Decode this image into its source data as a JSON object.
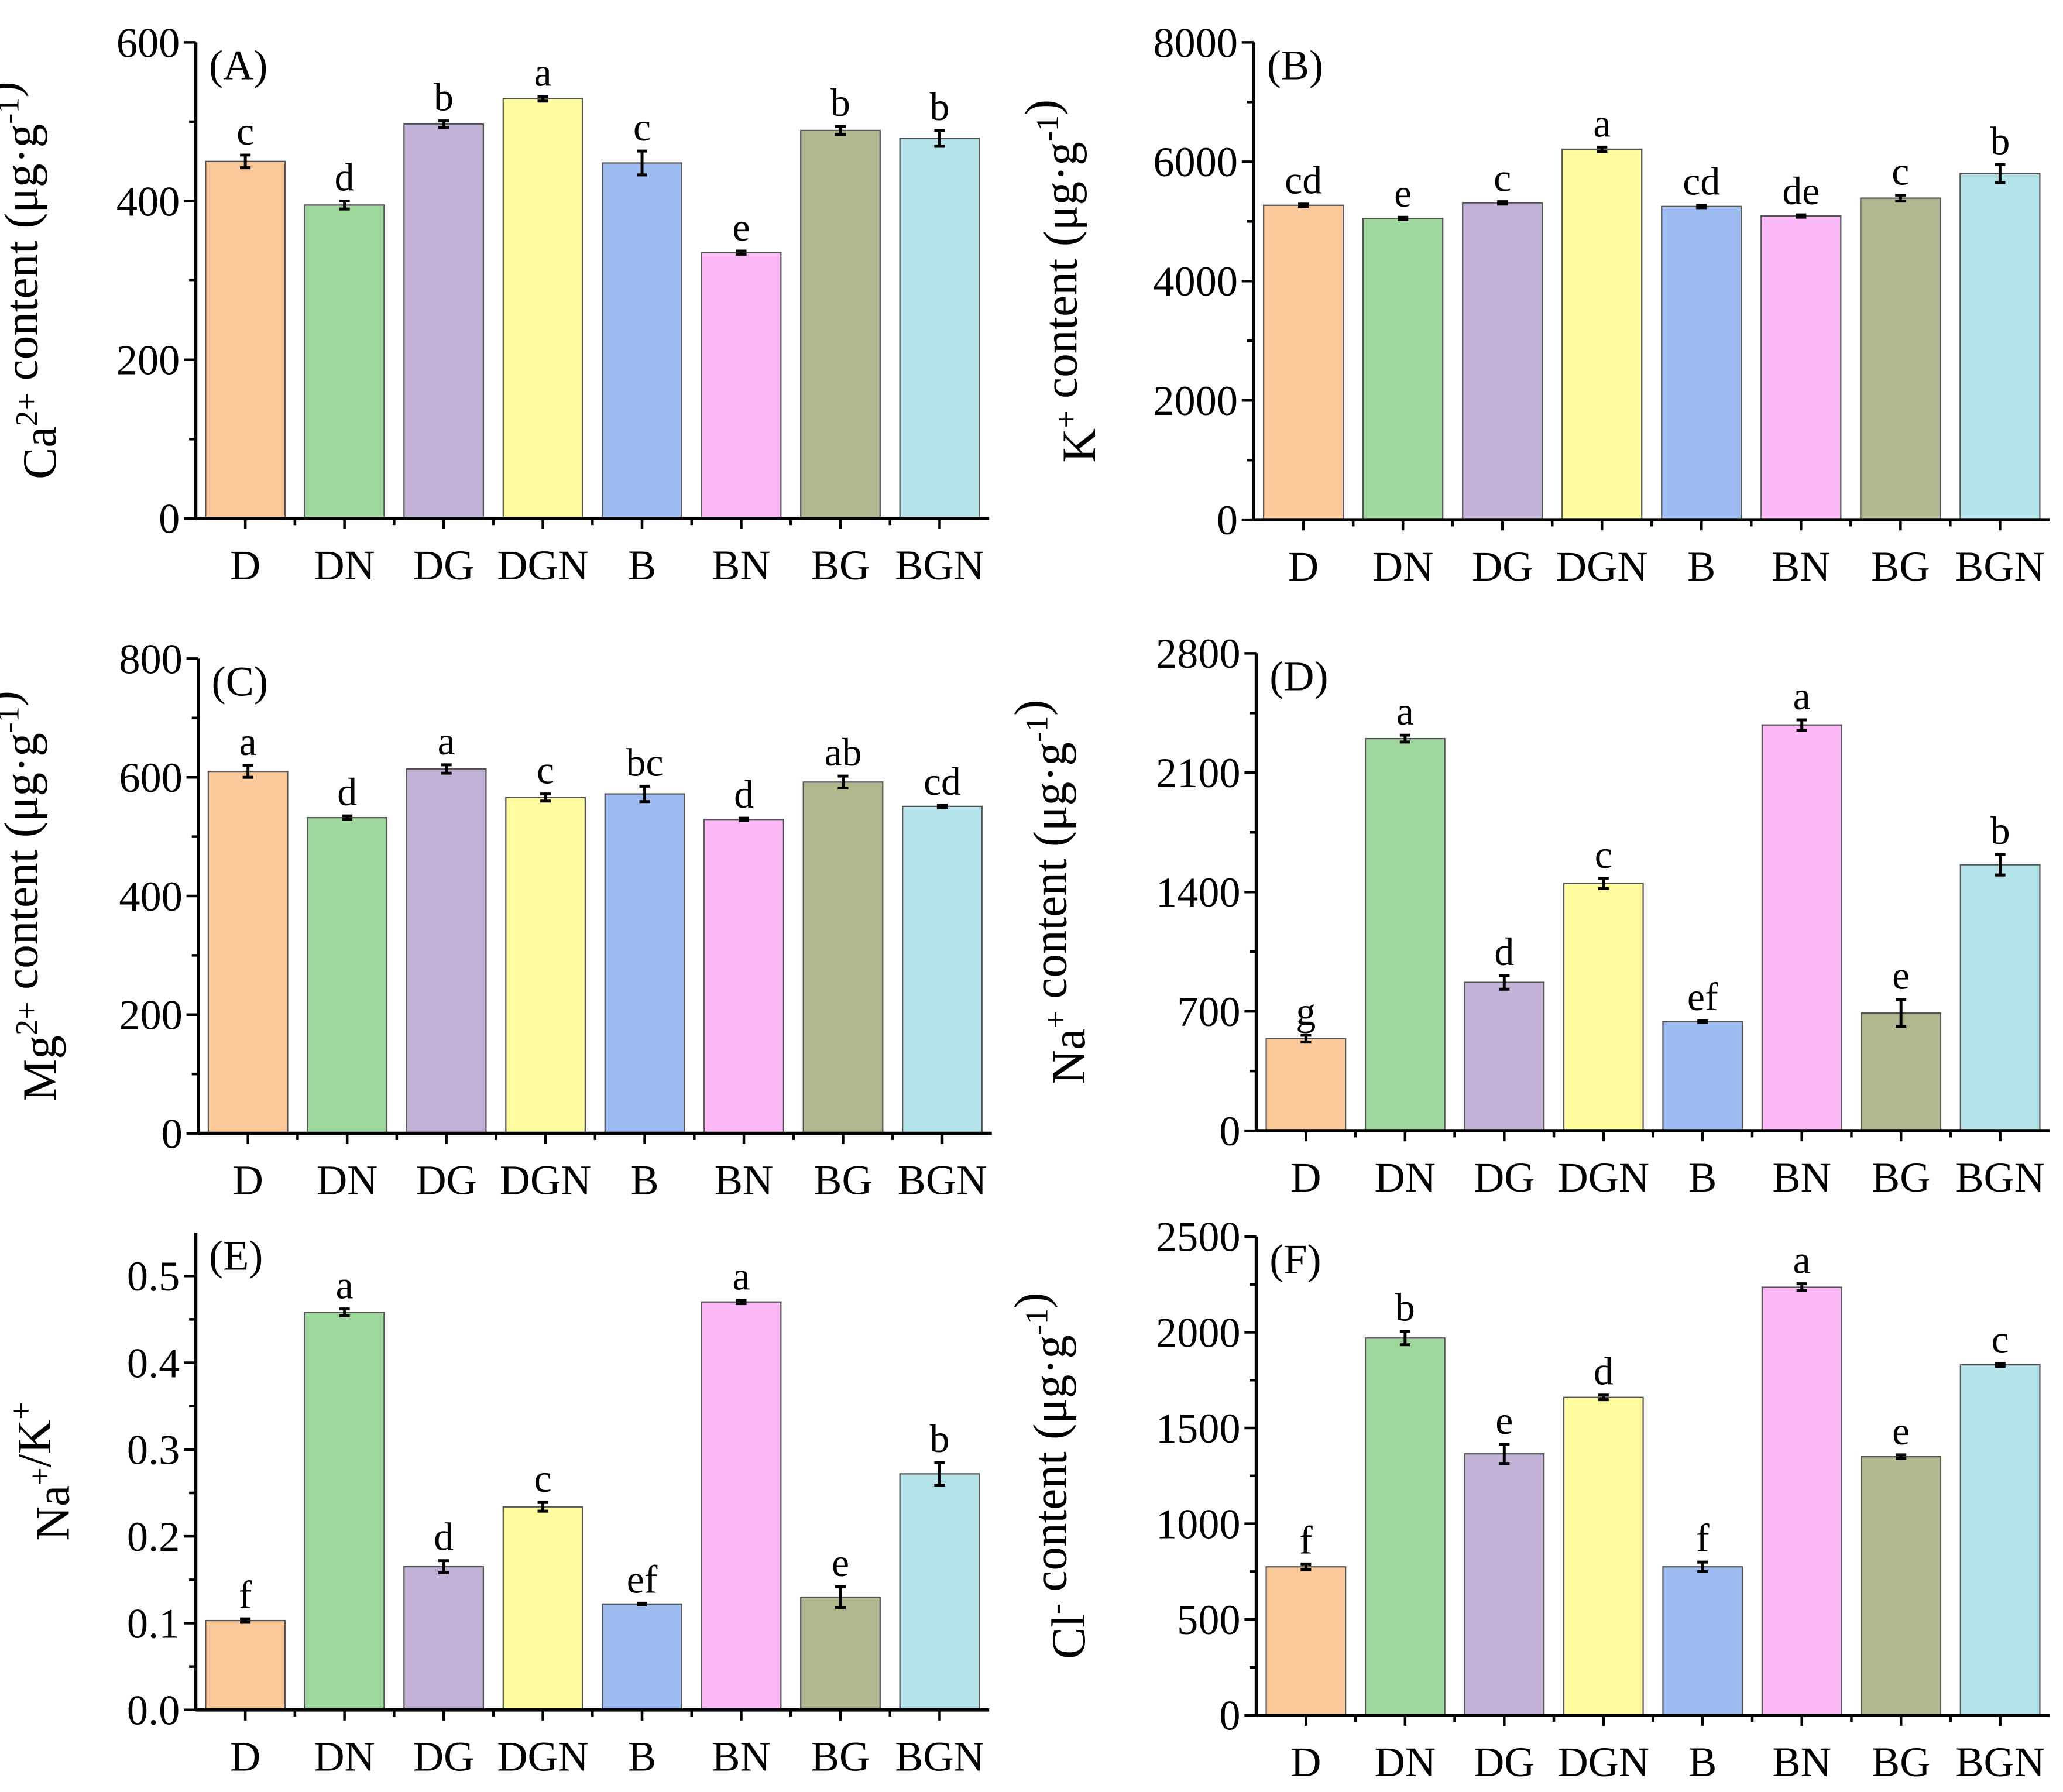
{
  "chart_data": [
    {
      "type": "bar",
      "panel": "(A)",
      "ylabel": [
        {
          "t": "Ca"
        },
        {
          "t": "2+",
          "sup": true
        },
        {
          "t": " content (μg·g"
        },
        {
          "t": "-1",
          "sup": true
        },
        {
          "t": ")"
        }
      ],
      "categories": [
        "D",
        "DN",
        "DG",
        "DGN",
        "B",
        "BN",
        "BG",
        "BGN"
      ],
      "values": [
        450,
        395,
        497,
        529,
        448,
        335,
        489,
        479
      ],
      "errors": [
        8,
        5,
        4,
        3,
        15,
        2,
        5,
        10
      ],
      "letters": [
        "c",
        "d",
        "b",
        "a",
        "c",
        "e",
        "b",
        "b"
      ],
      "ylim": [
        0,
        600
      ],
      "yticks": [
        0,
        200,
        400,
        600
      ],
      "ytick_labels": [
        "0",
        "200",
        "400",
        "600"
      ]
    },
    {
      "type": "bar",
      "panel": "(B)",
      "ylabel": [
        {
          "t": "K"
        },
        {
          "t": "+",
          "sup": true
        },
        {
          "t": " content (μg·g"
        },
        {
          "t": "-1",
          "sup": true
        },
        {
          "t": ")"
        }
      ],
      "categories": [
        "D",
        "DN",
        "DG",
        "DGN",
        "B",
        "BN",
        "BG",
        "BGN"
      ],
      "values": [
        5270,
        5050,
        5310,
        6210,
        5250,
        5090,
        5390,
        5800
      ],
      "errors": [
        20,
        20,
        20,
        35,
        20,
        20,
        50,
        150
      ],
      "letters": [
        "cd",
        "e",
        "c",
        "a",
        "cd",
        "de",
        "c",
        "b"
      ],
      "ylim": [
        0,
        8000
      ],
      "yticks": [
        0,
        2000,
        4000,
        6000,
        8000
      ],
      "ytick_labels": [
        "0",
        "2000",
        "4000",
        "6000",
        "8000"
      ]
    },
    {
      "type": "bar",
      "panel": "(C)",
      "ylabel": [
        {
          "t": "Mg"
        },
        {
          "t": "2+",
          "sup": true
        },
        {
          "t": " content (μg·g"
        },
        {
          "t": "-1",
          "sup": true
        },
        {
          "t": ")"
        }
      ],
      "categories": [
        "D",
        "DN",
        "DG",
        "DGN",
        "B",
        "BN",
        "BG",
        "BGN"
      ],
      "values": [
        610,
        532,
        614,
        566,
        572,
        529,
        592,
        551
      ],
      "errors": [
        10,
        3,
        7,
        6,
        13,
        2,
        10,
        2
      ],
      "letters": [
        "a",
        "d",
        "a",
        "c",
        "bc",
        "d",
        "ab",
        "cd"
      ],
      "ylim": [
        0,
        800
      ],
      "yticks": [
        0,
        200,
        400,
        600,
        800
      ],
      "ytick_labels": [
        "0",
        "200",
        "400",
        "600",
        "800"
      ]
    },
    {
      "type": "bar",
      "panel": "(D)",
      "ylabel": [
        {
          "t": "Na"
        },
        {
          "t": "+",
          "sup": true
        },
        {
          "t": " content (μg·g"
        },
        {
          "t": "-1",
          "sup": true
        },
        {
          "t": ")"
        }
      ],
      "categories": [
        "D",
        "DN",
        "DG",
        "DGN",
        "B",
        "BN",
        "BG",
        "BGN"
      ],
      "values": [
        540,
        2300,
        870,
        1450,
        640,
        2380,
        690,
        1560
      ],
      "errors": [
        20,
        20,
        40,
        30,
        5,
        30,
        80,
        60
      ],
      "letters": [
        "g",
        "a",
        "d",
        "c",
        "ef",
        "a",
        "e",
        "b"
      ],
      "ylim": [
        0,
        2800
      ],
      "yticks": [
        0,
        700,
        1400,
        2100,
        2800
      ],
      "ytick_labels": [
        "0",
        "700",
        "1400",
        "2100",
        "2800"
      ]
    },
    {
      "type": "bar",
      "panel": "(E)",
      "ylabel": [
        {
          "t": "Na"
        },
        {
          "t": "+",
          "sup": true
        },
        {
          "t": "/K"
        },
        {
          "t": "+",
          "sup": true
        }
      ],
      "categories": [
        "D",
        "DN",
        "DG",
        "DGN",
        "B",
        "BN",
        "BG",
        "BGN"
      ],
      "values": [
        0.103,
        0.458,
        0.165,
        0.234,
        0.122,
        0.47,
        0.13,
        0.272
      ],
      "errors": [
        0.002,
        0.004,
        0.007,
        0.005,
        0.001,
        0.002,
        0.012,
        0.013
      ],
      "letters": [
        "f",
        "a",
        "d",
        "c",
        "ef",
        "a",
        "e",
        "b"
      ],
      "ylim": [
        0,
        0.55
      ],
      "yticks": [
        0,
        0.1,
        0.2,
        0.3,
        0.4,
        0.5
      ],
      "ytick_labels": [
        "0.0",
        "0.1",
        "0.2",
        "0.3",
        "0.4",
        "0.5"
      ]
    },
    {
      "type": "bar",
      "panel": "(F)",
      "ylabel": [
        {
          "t": "Cl"
        },
        {
          "t": "-",
          "sup": true
        },
        {
          "t": " content (μg·g"
        },
        {
          "t": "-1",
          "sup": true
        },
        {
          "t": ")"
        }
      ],
      "categories": [
        "D",
        "DN",
        "DG",
        "DGN",
        "B",
        "BN",
        "BG",
        "BGN"
      ],
      "values": [
        775,
        1970,
        1365,
        1660,
        775,
        2235,
        1350,
        1830
      ],
      "errors": [
        15,
        35,
        50,
        12,
        25,
        18,
        10,
        8
      ],
      "letters": [
        "f",
        "b",
        "e",
        "d",
        "f",
        "a",
        "e",
        "c"
      ],
      "ylim": [
        0,
        2500
      ],
      "yticks": [
        0,
        500,
        1000,
        1500,
        2000,
        2500
      ],
      "ytick_labels": [
        "0",
        "500",
        "1000",
        "1500",
        "2000",
        "2500"
      ]
    }
  ],
  "colors": [
    "#FBC899",
    "#9FD89D",
    "#C2B1D6",
    "#FEFC9C",
    "#9CBCF2",
    "#FDB8F7",
    "#B3B790",
    "#B4E4EA"
  ]
}
